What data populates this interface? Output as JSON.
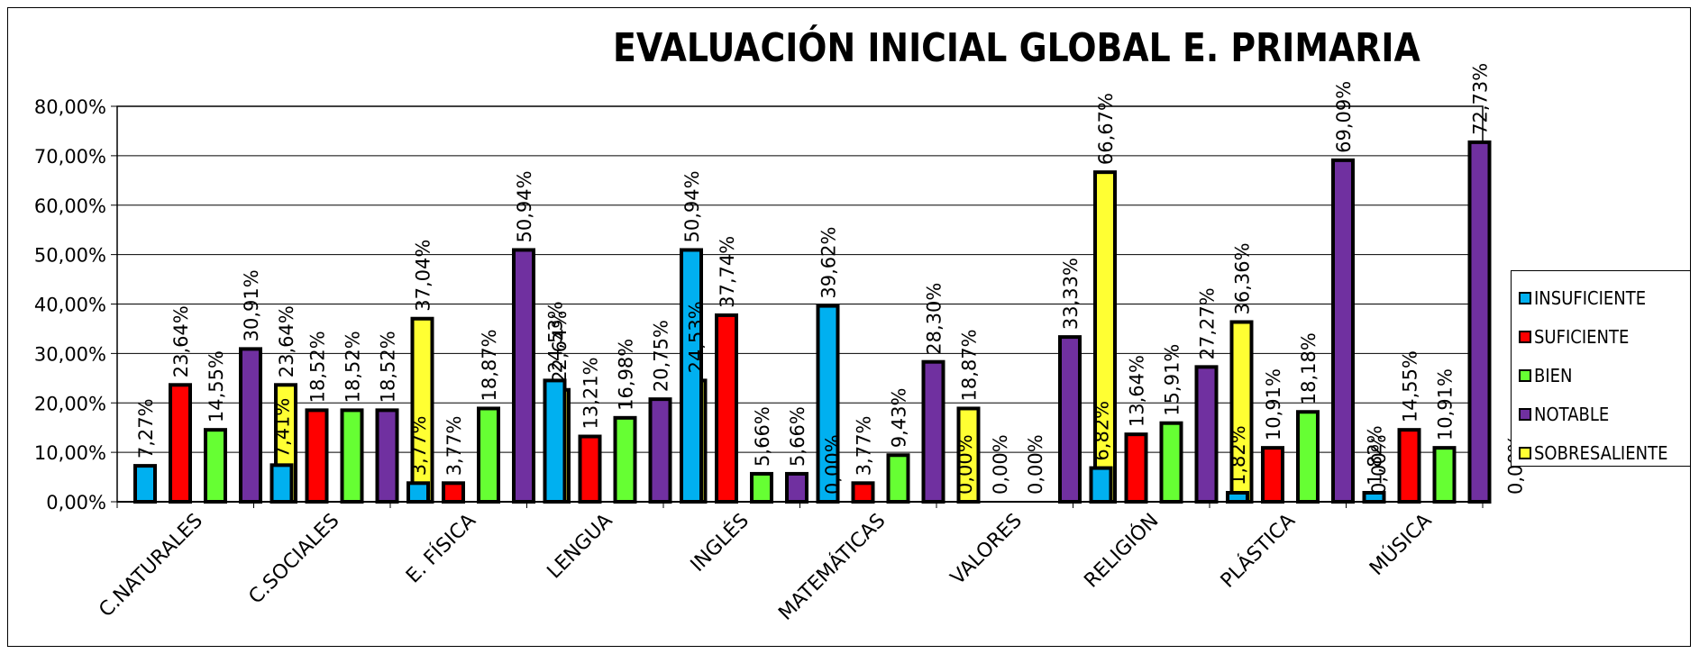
{
  "chart_data": {
    "type": "bar",
    "title": "EVALUACIÓN INICIAL GLOBAL E. PRIMARIA",
    "categories": [
      "C.NATURALES",
      "C.SOCIALES",
      "E. FÍSICA",
      "LENGUA",
      "INGLÉS",
      "MATEMÁTICAS",
      "VALORES",
      "RELIGIÓN",
      "PLÁSTICA",
      "MÚSICA"
    ],
    "ylim": [
      0,
      80
    ],
    "yticks": [
      "0,00%",
      "10,00%",
      "20,00%",
      "30,00%",
      "40,00%",
      "50,00%",
      "60,00%",
      "70,00%",
      "80,00%"
    ],
    "grid": true,
    "legend_position": "right",
    "series": [
      {
        "name": "INSUFICIENTE",
        "color": "#00B0F0",
        "values": [
          7.27,
          7.41,
          3.77,
          24.53,
          50.94,
          39.62,
          0.0,
          6.82,
          1.82,
          1.82
        ],
        "labels": [
          "7,27%",
          "7,41%",
          "3,77%",
          "24,53%",
          "50,94%",
          "39,62%",
          "0,00%",
          "6,82%",
          "1,82%",
          "1,82%"
        ]
      },
      {
        "name": "SUFICIENTE",
        "color": "#FF0000",
        "values": [
          23.64,
          18.52,
          3.77,
          13.21,
          37.74,
          3.77,
          0.0,
          13.64,
          10.91,
          14.55
        ],
        "labels": [
          "23,64%",
          "18,52%",
          "3,77%",
          "13,21%",
          "37,74%",
          "3,77%",
          "0,00%",
          "13,64%",
          "10,91%",
          "14,55%"
        ]
      },
      {
        "name": "BIEN",
        "color": "#66FF33",
        "values": [
          14.55,
          18.52,
          18.87,
          16.98,
          5.66,
          9.43,
          0.0,
          15.91,
          18.18,
          10.91
        ],
        "labels": [
          "14,55%",
          "18,52%",
          "18,87%",
          "16,98%",
          "5,66%",
          "9,43%",
          "0,00%",
          "15,91%",
          "18,18%",
          "10,91%"
        ]
      },
      {
        "name": "NOTABLE",
        "color": "#7030A0",
        "values": [
          30.91,
          18.52,
          50.94,
          20.75,
          5.66,
          28.3,
          33.33,
          27.27,
          69.09,
          72.73
        ],
        "labels": [
          "30,91%",
          "18,52%",
          "50,94%",
          "20,75%",
          "5,66%",
          "28,30%",
          "33,33%",
          "27,27%",
          "69,09%",
          "72,73%"
        ]
      },
      {
        "name": "SOBRESALIENTE",
        "color": "#FFFF33",
        "values": [
          23.64,
          37.04,
          22.64,
          24.53,
          0.0,
          18.87,
          66.67,
          36.36,
          0.0,
          0.0
        ],
        "labels": [
          "23,64%",
          "37,04%",
          "22,64%",
          "24,53%",
          "0,00%",
          "18,87%",
          "66,67%",
          "36,36%",
          "0,00%",
          "0,00%"
        ]
      }
    ]
  }
}
